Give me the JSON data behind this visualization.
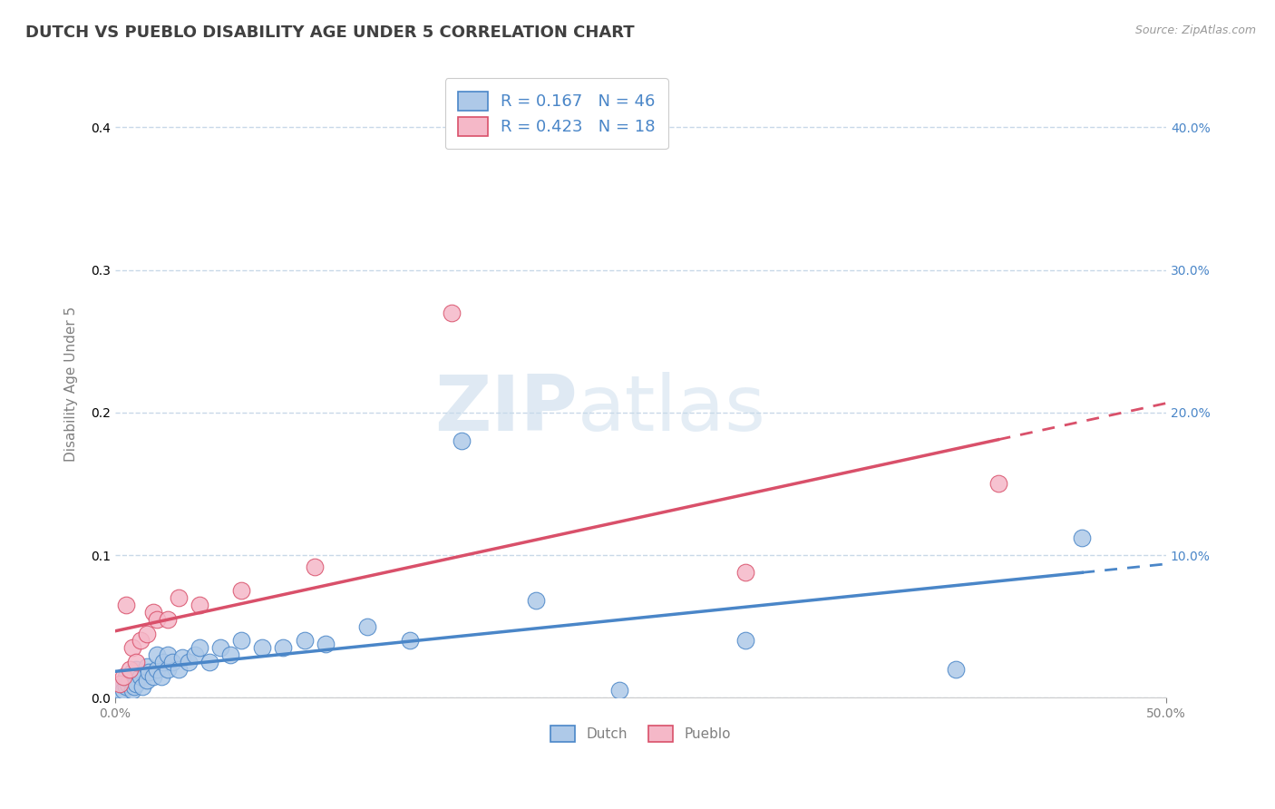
{
  "title": "DUTCH VS PUEBLO DISABILITY AGE UNDER 5 CORRELATION CHART",
  "source": "Source: ZipAtlas.com",
  "ylabel": "Disability Age Under 5",
  "xmin": 0.0,
  "xmax": 0.5,
  "ymin": 0.0,
  "ymax": 0.44,
  "yticks": [
    0.0,
    0.1,
    0.2,
    0.3,
    0.4
  ],
  "dutch_R": 0.167,
  "dutch_N": 46,
  "pueblo_R": 0.423,
  "pueblo_N": 18,
  "dutch_color": "#aec9e8",
  "pueblo_color": "#f5b8c8",
  "dutch_line_color": "#4a86c8",
  "pueblo_line_color": "#d9506a",
  "dutch_scatter_x": [
    0.002,
    0.003,
    0.004,
    0.005,
    0.005,
    0.006,
    0.007,
    0.008,
    0.008,
    0.009,
    0.01,
    0.01,
    0.012,
    0.013,
    0.015,
    0.015,
    0.016,
    0.018,
    0.02,
    0.02,
    0.022,
    0.023,
    0.025,
    0.025,
    0.027,
    0.03,
    0.032,
    0.035,
    0.038,
    0.04,
    0.045,
    0.05,
    0.055,
    0.06,
    0.07,
    0.08,
    0.09,
    0.1,
    0.12,
    0.14,
    0.165,
    0.2,
    0.24,
    0.3,
    0.4,
    0.46
  ],
  "dutch_scatter_y": [
    0.005,
    0.01,
    0.005,
    0.008,
    0.015,
    0.01,
    0.012,
    0.005,
    0.018,
    0.008,
    0.01,
    0.02,
    0.015,
    0.008,
    0.012,
    0.022,
    0.018,
    0.015,
    0.02,
    0.03,
    0.015,
    0.025,
    0.02,
    0.03,
    0.025,
    0.02,
    0.028,
    0.025,
    0.03,
    0.035,
    0.025,
    0.035,
    0.03,
    0.04,
    0.035,
    0.035,
    0.04,
    0.038,
    0.05,
    0.04,
    0.18,
    0.068,
    0.005,
    0.04,
    0.02,
    0.112
  ],
  "pueblo_scatter_x": [
    0.002,
    0.004,
    0.005,
    0.007,
    0.008,
    0.01,
    0.012,
    0.015,
    0.018,
    0.02,
    0.025,
    0.03,
    0.04,
    0.06,
    0.095,
    0.16,
    0.3,
    0.42
  ],
  "pueblo_scatter_y": [
    0.01,
    0.015,
    0.065,
    0.02,
    0.035,
    0.025,
    0.04,
    0.045,
    0.06,
    0.055,
    0.055,
    0.07,
    0.065,
    0.075,
    0.092,
    0.27,
    0.088,
    0.15
  ],
  "watermark_zip": "ZIP",
  "watermark_atlas": "atlas",
  "background_color": "#ffffff",
  "grid_color": "#c8d8e8",
  "title_color": "#404040",
  "title_fontsize": 13,
  "axis_label_color": "#808080",
  "right_tick_color": "#4a86c8"
}
